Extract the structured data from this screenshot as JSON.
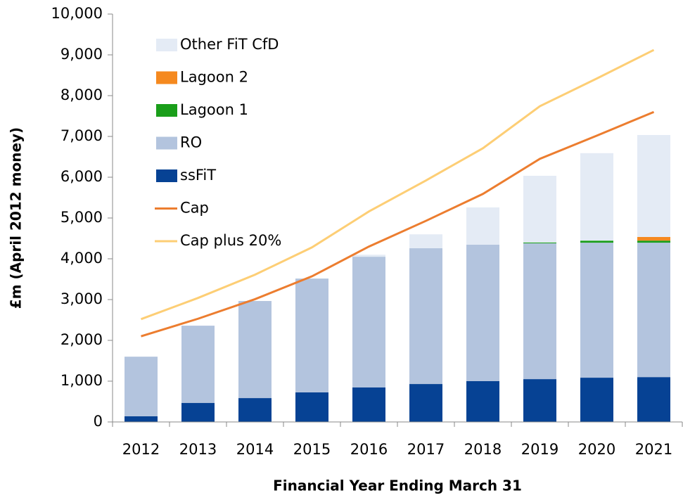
{
  "chart_data": {
    "type": "bar",
    "x_label": "Financial Year Ending March 31",
    "y_label": "£m (April 2012 money)",
    "categories": [
      "2012",
      "2013",
      "2014",
      "2015",
      "2016",
      "2017",
      "2018",
      "2019",
      "2020",
      "2021"
    ],
    "series": [
      {
        "name": "ssFiT",
        "type": "bar",
        "color": "#064294",
        "values": [
          140,
          465,
          585,
          725,
          845,
          930,
          1000,
          1050,
          1085,
          1100
        ]
      },
      {
        "name": "RO",
        "type": "bar",
        "color": "#b3c4de",
        "values": [
          1460,
          1895,
          2380,
          2790,
          3205,
          3330,
          3345,
          3330,
          3310,
          3295
        ]
      },
      {
        "name": "Lagoon 1",
        "type": "bar",
        "color": "#1a9e1a",
        "values": [
          0,
          0,
          0,
          0,
          0,
          0,
          0,
          20,
          50,
          50
        ]
      },
      {
        "name": "Lagoon 2",
        "type": "bar",
        "color": "#f5891f",
        "values": [
          0,
          0,
          0,
          0,
          0,
          0,
          0,
          0,
          0,
          90
        ]
      },
      {
        "name": "Other FiT CfD",
        "type": "bar",
        "color": "#e4ebf5",
        "values": [
          0,
          0,
          0,
          0,
          50,
          340,
          915,
          1635,
          2145,
          2500
        ]
      },
      {
        "name": "Cap",
        "type": "line",
        "color": "#ec7d2f",
        "values": [
          2100,
          2530,
          3010,
          3570,
          4300,
          4930,
          5590,
          6450,
          7020,
          7600
        ]
      },
      {
        "name": "Cap plus 20%",
        "type": "line",
        "color": "#fdce75",
        "values": [
          2520,
          3040,
          3610,
          4280,
          5160,
          5920,
          6710,
          7740,
          8420,
          9120
        ]
      }
    ],
    "ylim": [
      0,
      10000
    ],
    "yticks": [
      0,
      {
        "value": 1000,
        "label": "1,000"
      },
      {
        "value": 2000,
        "label": "2,000"
      },
      {
        "value": 3000,
        "label": "3,000"
      },
      {
        "value": 4000,
        "label": "4,000"
      },
      {
        "value": 5000,
        "label": "5,000"
      },
      {
        "value": 6000,
        "label": "6,000"
      },
      {
        "value": 7000,
        "label": "7,000"
      },
      {
        "value": 8000,
        "label": "8,000"
      },
      {
        "value": 9000,
        "label": "9,000"
      },
      {
        "value": 10000,
        "label": "10,000"
      }
    ],
    "grid": false,
    "legend": "top-left"
  }
}
